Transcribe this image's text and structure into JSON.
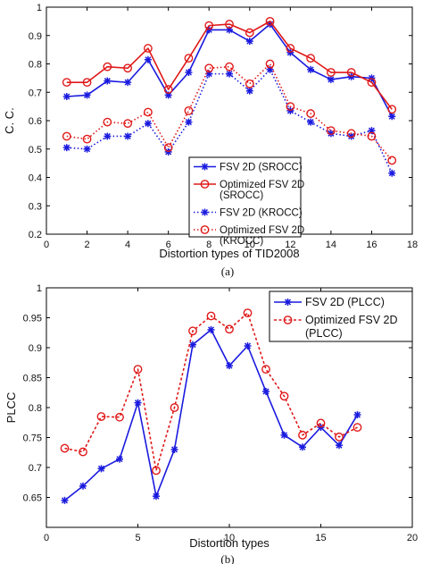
{
  "chart_data": [
    {
      "type": "line",
      "panel_label": "(a)",
      "xlabel": "Distortion types of TID2008",
      "ylabel": "C. C.",
      "xlim": [
        0,
        18
      ],
      "ylim": [
        0.2,
        1.0
      ],
      "xticks": [
        0,
        2,
        4,
        6,
        8,
        10,
        12,
        14,
        16,
        18
      ],
      "yticks": [
        0.2,
        0.3,
        0.4,
        0.5,
        0.6,
        0.7,
        0.8,
        0.9,
        1.0
      ],
      "ytick_labels": [
        "0.2",
        "0.3",
        "0.4",
        "0.5",
        "0.6",
        "0.7",
        "0.8",
        "0.9",
        "1"
      ],
      "grid": false,
      "legend_position": "center-right",
      "x": [
        1,
        2,
        3,
        4,
        5,
        6,
        7,
        8,
        9,
        10,
        11,
        12,
        13,
        14,
        15,
        16,
        17
      ],
      "series": [
        {
          "name": "FSV 2D (SROCC)",
          "color": "#1a1adf",
          "line": "solid",
          "marker": "star",
          "values": [
            0.685,
            0.69,
            0.74,
            0.735,
            0.815,
            0.69,
            0.77,
            0.92,
            0.92,
            0.88,
            0.94,
            0.84,
            0.78,
            0.745,
            0.755,
            0.75,
            0.615
          ]
        },
        {
          "name": "Optimized FSV 2D (SROCC)",
          "legend_lines": [
            "Optimized FSV 2D",
            "(SROCC)"
          ],
          "color": "#e01818",
          "line": "solid",
          "marker": "circle",
          "values": [
            0.735,
            0.735,
            0.79,
            0.785,
            0.855,
            0.71,
            0.82,
            0.935,
            0.94,
            0.91,
            0.95,
            0.855,
            0.82,
            0.77,
            0.77,
            0.735,
            0.64
          ]
        },
        {
          "name": "FSV 2D (KROCC)",
          "color": "#1a1adf",
          "line": "dotted",
          "marker": "star",
          "values": [
            0.505,
            0.5,
            0.545,
            0.545,
            0.59,
            0.49,
            0.595,
            0.765,
            0.765,
            0.705,
            0.78,
            0.635,
            0.595,
            0.555,
            0.545,
            0.565,
            0.415
          ]
        },
        {
          "name": "Optimized FSV 2D (KROCC)",
          "legend_lines": [
            "Optimized FSV 2D",
            "(KROCC)"
          ],
          "color": "#e01818",
          "line": "dotted",
          "marker": "circle",
          "values": [
            0.545,
            0.535,
            0.595,
            0.59,
            0.63,
            0.505,
            0.635,
            0.785,
            0.79,
            0.73,
            0.8,
            0.65,
            0.625,
            0.565,
            0.555,
            0.545,
            0.46
          ]
        }
      ]
    },
    {
      "type": "line",
      "panel_label": "(b)",
      "xlabel": "Distortion types",
      "ylabel": "PLCC",
      "xlim": [
        0,
        20
      ],
      "ylim": [
        0.6,
        1.0
      ],
      "xticks": [
        0,
        5,
        10,
        15,
        20
      ],
      "yticks": [
        0.65,
        0.7,
        0.75,
        0.8,
        0.85,
        0.9,
        0.95,
        1.0
      ],
      "ytick_labels": [
        "0.65",
        "0.7",
        "0.75",
        "0.8",
        "0.85",
        "0.9",
        "0.95",
        "1"
      ],
      "grid": false,
      "legend_position": "top-right",
      "x": [
        1,
        2,
        3,
        4,
        5,
        6,
        7,
        8,
        9,
        10,
        11,
        12,
        13,
        14,
        15,
        16,
        17
      ],
      "series": [
        {
          "name": "FSV 2D (PLCC)",
          "color": "#1a1adf",
          "line": "solid",
          "marker": "star",
          "values": [
            0.645,
            0.669,
            0.698,
            0.714,
            0.808,
            0.652,
            0.73,
            0.905,
            0.93,
            0.87,
            0.903,
            0.827,
            0.754,
            0.734,
            0.767,
            0.737,
            0.788
          ]
        },
        {
          "name": "Optimized FSV 2D (PLCC)",
          "legend_lines": [
            "Optimized FSV 2D",
            "(PLCC)"
          ],
          "color": "#e01818",
          "line": "dashed",
          "marker": "circle",
          "values": [
            0.732,
            0.726,
            0.785,
            0.784,
            0.864,
            0.695,
            0.8,
            0.928,
            0.953,
            0.931,
            0.958,
            0.864,
            0.819,
            0.754,
            0.774,
            0.751,
            0.767
          ]
        }
      ]
    }
  ]
}
